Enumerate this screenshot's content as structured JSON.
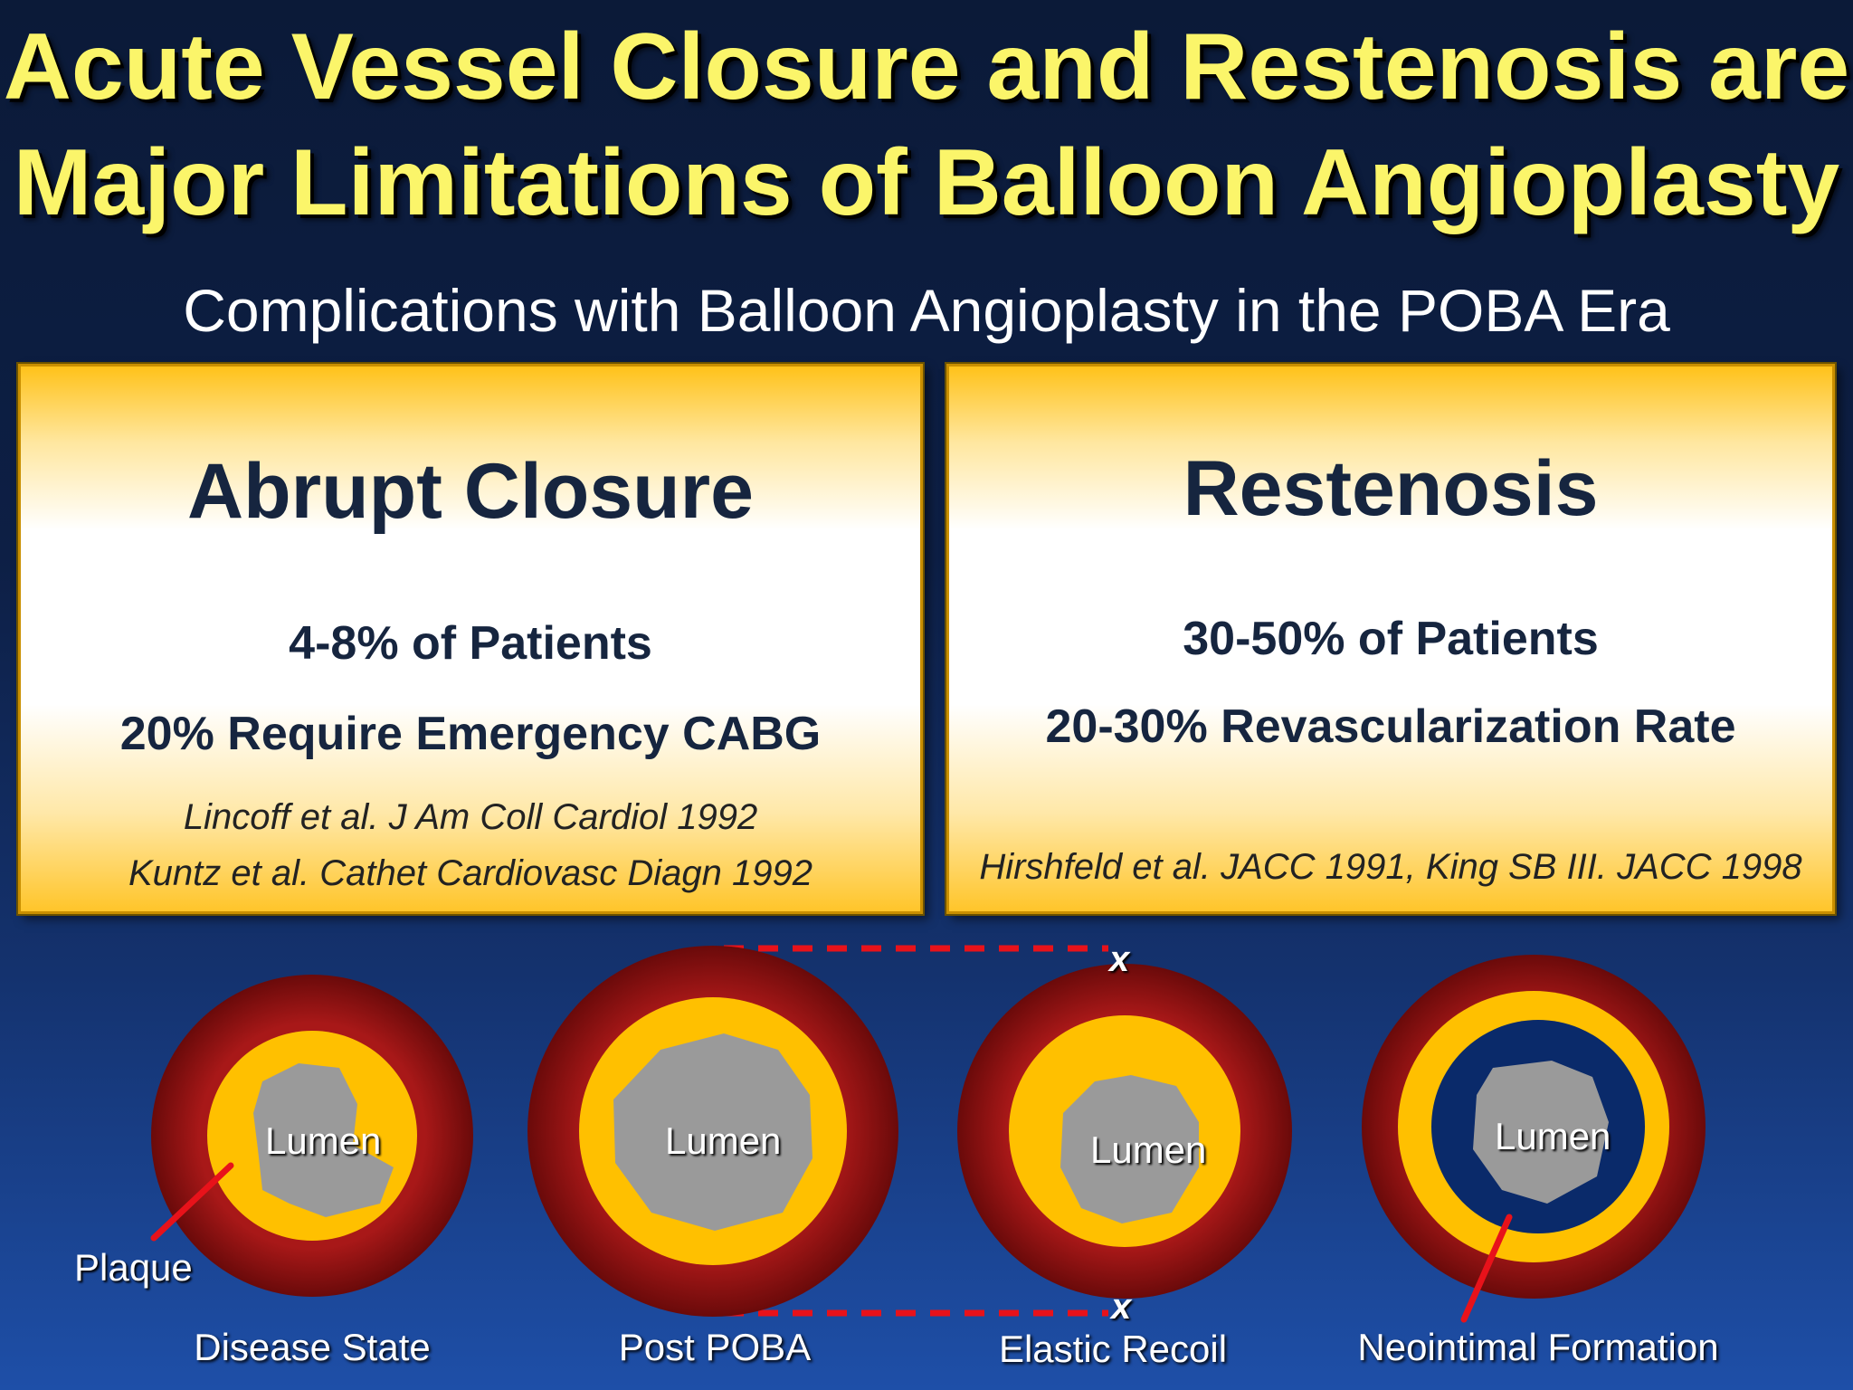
{
  "title": {
    "line1": "Acute Vessel Closure and Restenosis are",
    "line2": "Major Limitations of Balloon Angioplasty"
  },
  "subtitle": "Complications with Balloon Angioplasty in the POBA Era",
  "panels": {
    "left": {
      "heading": "Abrupt Closure",
      "line1": "4-8% of Patients",
      "line2": "20% Require Emergency CABG",
      "citation1": "Lincoff et al. J Am Coll Cardiol 1992",
      "citation2": "Kuntz et al. Cathet Cardiovasc Diagn 1992"
    },
    "right": {
      "heading": "Restenosis",
      "line1": "30-50% of Patients",
      "line2": "20-30% Revascularization Rate",
      "citation": "Hirshfeld et al. JACC 1991, King SB III. JACC 1998"
    }
  },
  "diagram": {
    "lumen_label": "Lumen",
    "plaque_label": "Plaque",
    "x_marker": "x",
    "captions": [
      "Disease State",
      "Post POBA",
      "Elastic Recoil",
      "Neointimal Formation"
    ],
    "colors": {
      "vessel_wall": "#9b1414",
      "plaque": "#ffc000",
      "lumen": "#9a9a9a",
      "neointima": "#0a2a6a",
      "arrow": "#e8121a",
      "dashed_line": "#e8121a"
    }
  }
}
